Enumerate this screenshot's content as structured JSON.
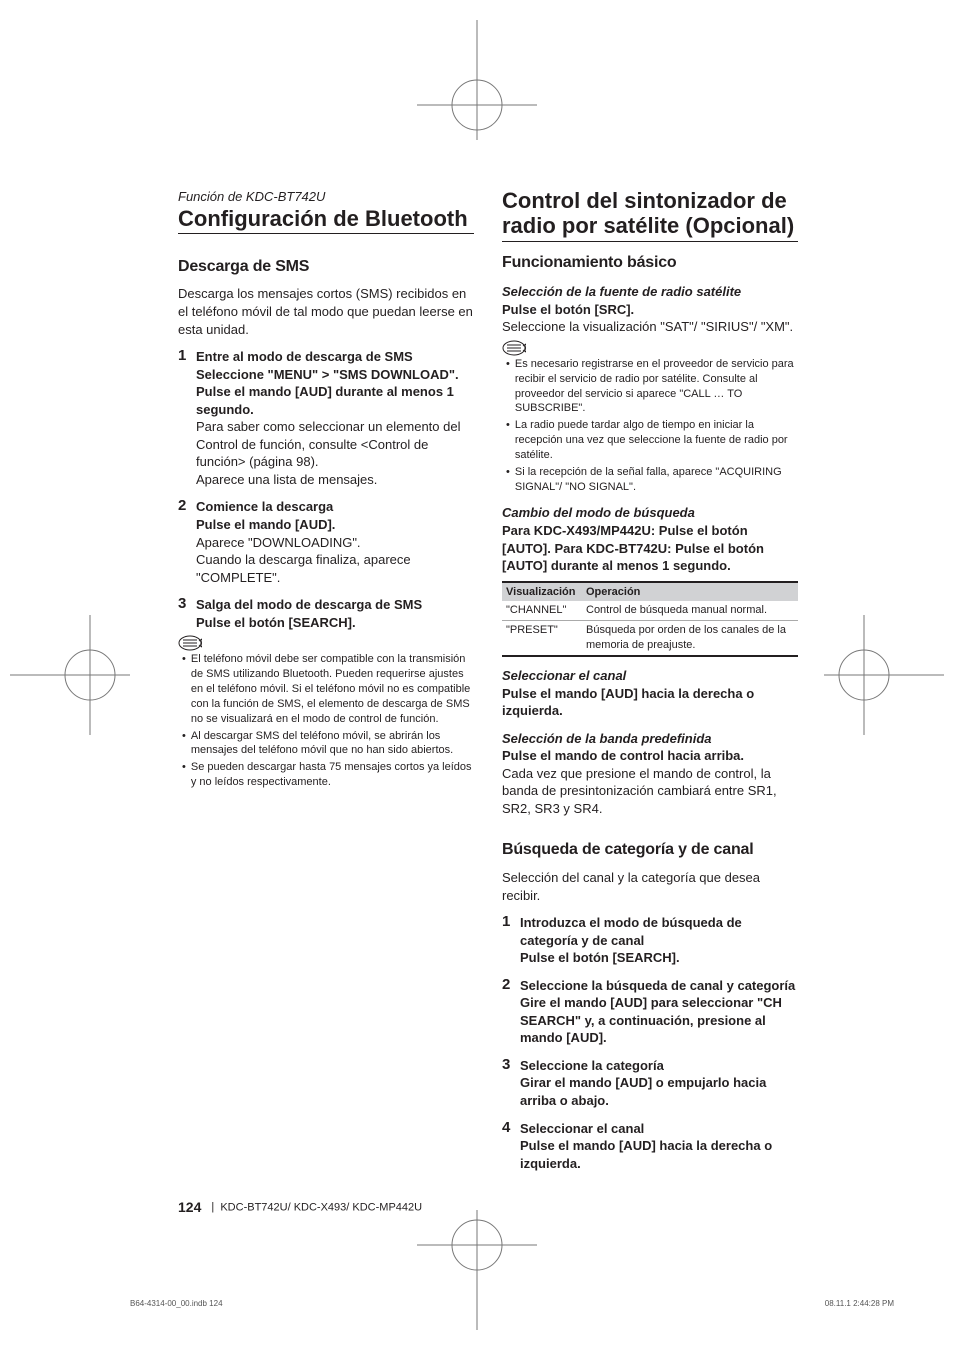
{
  "left": {
    "pretitle": "Función de KDC-BT742U",
    "title": "Configuración de Bluetooth",
    "h2": "Descarga de SMS",
    "intro": "Descarga los mensajes cortos (SMS) recibidos en el teléfono móvil de tal modo que puedan leerse en esta unidad.",
    "steps": [
      {
        "num": "1",
        "title": "Entre al modo de descarga de SMS",
        "sub": "Seleccione \"MENU\" > \"SMS DOWNLOAD\". Pulse el mando [AUD] durante al menos 1 segundo.",
        "text": "Para saber como seleccionar un elemento del Control de función, consulte <Control de función> (página 98).\nAparece una lista de mensajes."
      },
      {
        "num": "2",
        "title": "Comience la descarga",
        "sub": "Pulse el mando [AUD].",
        "text": "Aparece \"DOWNLOADING\".\nCuando la descarga finaliza, aparece \"COMPLETE\"."
      },
      {
        "num": "3",
        "title": "Salga del modo de descarga de SMS",
        "sub": "Pulse el botón [SEARCH].",
        "text": ""
      }
    ],
    "bullets": [
      "El teléfono móvil debe ser compatible con la transmisión de SMS utilizando Bluetooth. Pueden requerirse ajustes en el teléfono móvil. Si el teléfono móvil no es compatible con la función de SMS, el elemento de descarga de SMS no se visualizará en el modo de control de función.",
      "Al descargar SMS del teléfono móvil, se abrirán los mensajes del teléfono móvil que no han sido abiertos.",
      "Se pueden descargar hasta 75 mensajes cortos ya leídos y no leídos respectivamente."
    ]
  },
  "right": {
    "title": "Control del sintonizador de radio por satélite (Opcional)",
    "h2a": "Funcionamiento básico",
    "sel_source": {
      "h3": "Selección de la fuente de radio satélite",
      "bold": "Pulse el botón [SRC].",
      "text": "Seleccione la visualización \"SAT\"/ \"SIRIUS\"/ \"XM\".",
      "bullets": [
        "Es necesario registrarse en el proveedor de servicio para recibir el servicio de radio por satélite. Consulte al proveedor del servicio si aparece \"CALL … TO SUBSCRIBE\".",
        "La radio puede tardar algo de tiempo en iniciar la recepción una vez que seleccione la fuente de radio por satélite.",
        "Si la recepción de la señal falla, aparece \"ACQUIRING SIGNAL\"/ \"NO SIGNAL\"."
      ]
    },
    "mode_change": {
      "h3": "Cambio del modo de búsqueda",
      "bold": "Para KDC-X493/MP442U: Pulse el botón [AUTO]. Para KDC-BT742U: Pulse el botón [AUTO] durante al menos 1 segundo.",
      "table": {
        "cols": [
          "Visualización",
          "Operación"
        ],
        "rows": [
          [
            "\"CHANNEL\"",
            "Control de búsqueda manual normal."
          ],
          [
            "\"PRESET\"",
            "Búsqueda por orden de los canales de la memoria de preajuste."
          ]
        ]
      }
    },
    "sel_channel": {
      "h3": "Seleccionar el canal",
      "bold": "Pulse el mando [AUD] hacia la derecha o izquierda."
    },
    "sel_band": {
      "h3": "Selección de la banda predefinida",
      "bold": "Pulse el mando de control hacia arriba.",
      "text": "Cada vez que presione el mando de control, la banda de presintonización cambiará entre SR1, SR2, SR3 y SR4."
    },
    "h2b": "Búsqueda de categoría y de canal",
    "search_intro": "Selección del canal y la categoría que desea recibir.",
    "steps": [
      {
        "num": "1",
        "title": "Introduzca el modo de búsqueda de categoría y de canal",
        "sub": "Pulse el botón [SEARCH]."
      },
      {
        "num": "2",
        "title": "Seleccione la búsqueda de canal y categoría",
        "sub": "Gire el mando [AUD] para seleccionar \"CH SEARCH\" y, a continuación, presione al mando [AUD]."
      },
      {
        "num": "3",
        "title": "Seleccione la categoría",
        "sub": "Girar el mando [AUD] o empujarlo hacia arriba o abajo."
      },
      {
        "num": "4",
        "title": "Seleccionar el canal",
        "sub": "Pulse el mando [AUD] hacia la derecha o izquierda."
      }
    ]
  },
  "footer": {
    "page": "124",
    "models": "KDC-BT742U/ KDC-X493/ KDC-MP442U"
  },
  "printbar": {
    "file": "B64-4314-00_00.indb   124",
    "stamp": "08.11.1   2:44:28 PM"
  }
}
